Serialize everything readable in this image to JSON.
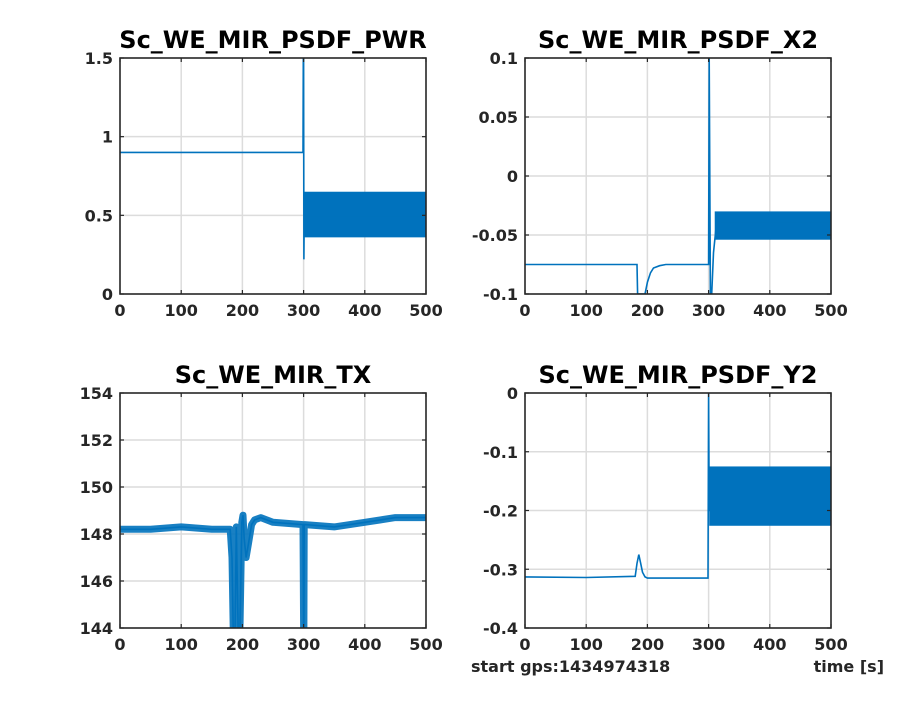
{
  "footer": {
    "start_label": "start gps:1434974318",
    "xlabel": "time [s]"
  },
  "chart_data": [
    {
      "type": "line",
      "title": "Sc_WE_MIR_PSDF_PWR",
      "xlim": [
        0,
        500
      ],
      "ylim": [
        0,
        1.5
      ],
      "xticks": [
        0,
        100,
        200,
        300,
        400,
        500
      ],
      "xtick_labels": [
        "0",
        "100",
        "200",
        "300",
        "400",
        "500"
      ],
      "yticks": [
        0,
        0.5,
        1,
        1.5
      ],
      "ytick_labels": [
        "0",
        "0.5",
        "1",
        "1.5"
      ],
      "grid": true,
      "color": "#0072bd",
      "x": [
        0,
        298,
        299,
        299.5,
        300,
        300.5,
        301,
        500
      ],
      "y": [
        0.9,
        0.9,
        0.9,
        1.5,
        1.5,
        0.22,
        0.5,
        0.5
      ],
      "bands": [
        {
          "x0": 301,
          "x1": 500,
          "y0": 0.36,
          "y1": 0.65
        }
      ]
    },
    {
      "type": "line",
      "title": "Sc_WE_MIR_PSDF_X2",
      "xlim": [
        0,
        500
      ],
      "ylim": [
        -0.1,
        0.1
      ],
      "xticks": [
        0,
        100,
        200,
        300,
        400,
        500
      ],
      "xtick_labels": [
        "0",
        "100",
        "200",
        "300",
        "400",
        "500"
      ],
      "yticks": [
        -0.1,
        -0.05,
        0,
        0.05,
        0.1
      ],
      "ytick_labels": [
        "-0.1",
        "-0.05",
        "0",
        "0.05",
        "0.1"
      ],
      "grid": true,
      "color": "#0072bd",
      "x": [
        0,
        183,
        184,
        187,
        190,
        193,
        196,
        200,
        205,
        210,
        220,
        230,
        240,
        250,
        260,
        270,
        280,
        290,
        300,
        301,
        303,
        305,
        308,
        312,
        316,
        320,
        500
      ],
      "y": [
        -0.075,
        -0.075,
        -0.1,
        -0.1,
        -0.1,
        -0.1,
        -0.1,
        -0.09,
        -0.082,
        -0.078,
        -0.076,
        -0.075,
        -0.075,
        -0.075,
        -0.075,
        -0.075,
        -0.075,
        -0.075,
        -0.075,
        0.1,
        -0.1,
        -0.1,
        -0.065,
        -0.045,
        -0.042,
        -0.04,
        -0.04
      ],
      "bands": [
        {
          "x0": 310,
          "x1": 500,
          "y0": -0.054,
          "y1": -0.03
        }
      ]
    },
    {
      "type": "line",
      "title": "Sc_WE_MIR_TX",
      "xlim": [
        0,
        500
      ],
      "ylim": [
        144,
        154
      ],
      "xticks": [
        0,
        100,
        200,
        300,
        400,
        500
      ],
      "xtick_labels": [
        "0",
        "100",
        "200",
        "300",
        "400",
        "500"
      ],
      "yticks": [
        144,
        146,
        148,
        150,
        152,
        154
      ],
      "ytick_labels": [
        "144",
        "146",
        "148",
        "150",
        "152",
        "154"
      ],
      "grid": true,
      "color": "#0072bd",
      "x": [
        0,
        50,
        100,
        150,
        180,
        183,
        185,
        188,
        190,
        193,
        196,
        199,
        201,
        203,
        206,
        210,
        215,
        220,
        230,
        250,
        299,
        300,
        300.5,
        301,
        302,
        350,
        400,
        450,
        500
      ],
      "y": [
        148.2,
        148.2,
        148.3,
        148.2,
        148.2,
        147,
        144,
        144,
        148.3,
        144,
        144,
        148.5,
        148.8,
        147.8,
        147,
        147.6,
        148.4,
        148.6,
        148.7,
        148.5,
        148.4,
        144,
        144,
        148.4,
        148.4,
        148.3,
        148.5,
        148.7,
        148.7
      ],
      "bands": [
        {
          "x0": 0,
          "x1": 500,
          "y0": -0.25,
          "y1": 0.25,
          "relative": true
        }
      ]
    },
    {
      "type": "line",
      "title": "Sc_WE_MIR_PSDF_Y2",
      "xlim": [
        0,
        500
      ],
      "ylim": [
        -0.4,
        0
      ],
      "xticks": [
        0,
        100,
        200,
        300,
        400,
        500
      ],
      "xtick_labels": [
        "0",
        "100",
        "200",
        "300",
        "400",
        "500"
      ],
      "yticks": [
        -0.4,
        -0.3,
        -0.2,
        -0.1,
        0
      ],
      "ytick_labels": [
        "-0.4",
        "-0.3",
        "-0.2",
        "-0.1",
        "0"
      ],
      "grid": true,
      "color": "#0072bd",
      "x": [
        0,
        100,
        180,
        183,
        186,
        189,
        192,
        196,
        200,
        250,
        299,
        300,
        301,
        500
      ],
      "y": [
        -0.313,
        -0.314,
        -0.312,
        -0.29,
        -0.275,
        -0.29,
        -0.305,
        -0.313,
        -0.315,
        -0.315,
        -0.315,
        0,
        -0.2,
        -0.2
      ],
      "bands": [
        {
          "x0": 301,
          "x1": 500,
          "y0": -0.226,
          "y1": -0.125
        }
      ]
    }
  ]
}
